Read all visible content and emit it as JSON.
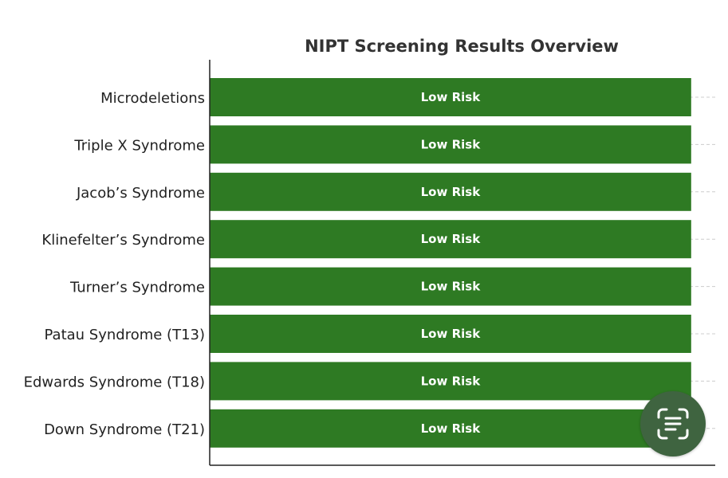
{
  "chart_data": {
    "type": "bar",
    "orientation": "horizontal",
    "title": "NIPT Screening Results Overview",
    "xlabel": "",
    "ylabel": "",
    "categories": [
      "Microdeletions",
      "Triple X Syndrome",
      "Jacob’s Syndrome",
      "Klinefelter’s Syndrome",
      "Turner’s Syndrome",
      "Patau Syndrome (T13)",
      "Edwards Syndrome (T18)",
      "Down Syndrome (T21)"
    ],
    "values": [
      1,
      1,
      1,
      1,
      1,
      1,
      1,
      1
    ],
    "labels": [
      "Low Risk",
      "Low Risk",
      "Low Risk",
      "Low Risk",
      "Low Risk",
      "Low Risk",
      "Low Risk",
      "Low Risk"
    ],
    "xlim": [
      0,
      1.05
    ],
    "grid": true,
    "colors": {
      "bar": "#2e7a23",
      "bar_text": "#ffffff",
      "axis": "#222222",
      "grid": "#cccccc"
    }
  },
  "overlay": {
    "scan_icon": "text-scan-icon",
    "button_color": "#3f6440"
  }
}
